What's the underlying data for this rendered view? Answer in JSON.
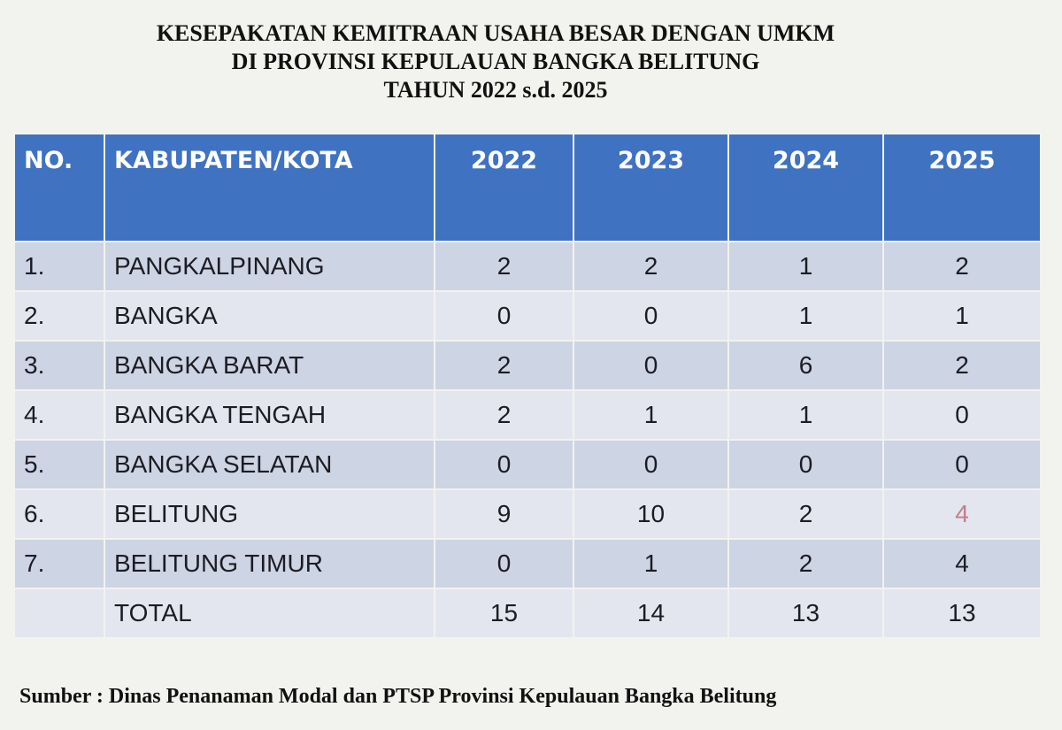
{
  "title": {
    "line1": "KESEPAKATAN KEMITRAAN USAHA BESAR DENGAN UMKM",
    "line2": "DI PROVINSI KEPULAUAN BANGKA BELITUNG",
    "line3": "TAHUN 2022 s.d. 2025"
  },
  "colors": {
    "header": "#3f72c0",
    "row_dark": "#cdd4e3",
    "row_light": "#e3e6ee",
    "highlight": "#c0808a"
  },
  "table": {
    "headers": [
      "NO.",
      "KABUPATEN/KOTA",
      "2022",
      "2023",
      "2024",
      "2025"
    ],
    "rows": [
      [
        "1.",
        "PANGKALPINANG",
        "2",
        "2",
        "1",
        "2"
      ],
      [
        "2.",
        "BANGKA",
        "0",
        "0",
        "1",
        "1"
      ],
      [
        "3.",
        "BANGKA BARAT",
        "2",
        "0",
        "6",
        "2"
      ],
      [
        "4.",
        "BANGKA TENGAH",
        "2",
        "1",
        "1",
        "0"
      ],
      [
        "5.",
        "BANGKA SELATAN",
        "0",
        "0",
        "0",
        "0"
      ],
      [
        "6.",
        "BELITUNG",
        "9",
        "10",
        "2",
        "4"
      ],
      [
        "7.",
        "BELITUNG TIMUR",
        "0",
        "1",
        "2",
        "4"
      ],
      [
        "",
        "TOTAL",
        "15",
        "14",
        "13",
        "13"
      ]
    ]
  },
  "source": "Sumber : Dinas Penanaman Modal dan PTSP Provinsi Kepulauan Bangka Belitung"
}
